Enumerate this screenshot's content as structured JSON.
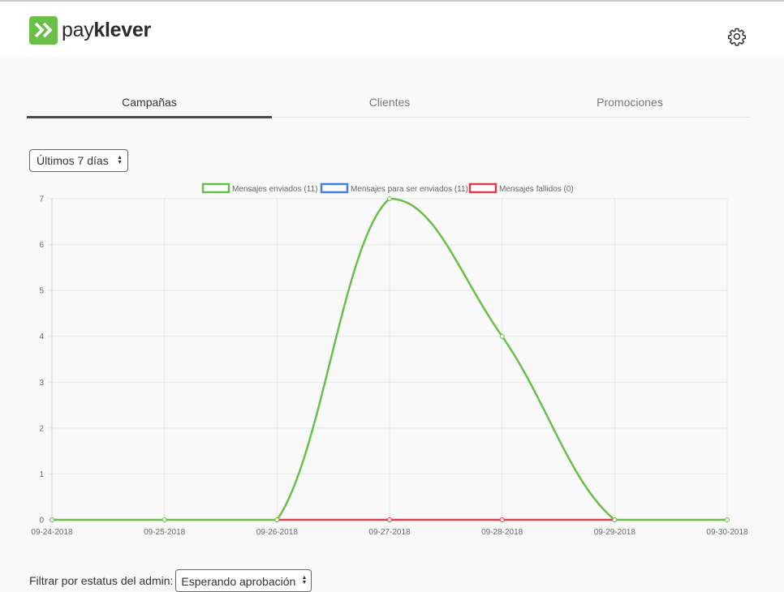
{
  "header": {
    "logo_light": "pay",
    "logo_bold": "klever",
    "settings_icon": "gear-icon"
  },
  "tabs": [
    {
      "label": "Campañas",
      "active": true
    },
    {
      "label": "Clientes",
      "active": false
    },
    {
      "label": "Promociones",
      "active": false
    }
  ],
  "range_select": {
    "value": "Últimos 7 días"
  },
  "filter": {
    "label": "Filtrar por estatus del admin:",
    "value": "Esperando aprobación"
  },
  "chart_data": {
    "type": "line",
    "categories": [
      "09-24-2018",
      "09-25-2018",
      "09-26-2018",
      "09-27-2018",
      "09-28-2018",
      "09-29-2018",
      "09-30-2018"
    ],
    "ylim": [
      0,
      7
    ],
    "yticks": [
      "0",
      "1",
      "2",
      "3",
      "4",
      "5",
      "6",
      "7"
    ],
    "grid": true,
    "legend_position": "top",
    "series": [
      {
        "name": "Mensajes enviados (11)",
        "color": "#6abf4b",
        "values": [
          0,
          0,
          0,
          7,
          4,
          0,
          0
        ]
      },
      {
        "name": "Mensajes para ser enviados (11)",
        "color": "#3f7fe0",
        "values": [
          null,
          null,
          null,
          null,
          null,
          null,
          null
        ]
      },
      {
        "name": "Mensajes fallidos (0)",
        "color": "#d9404e",
        "values": [
          null,
          null,
          0,
          0,
          0,
          0,
          null
        ]
      }
    ]
  }
}
